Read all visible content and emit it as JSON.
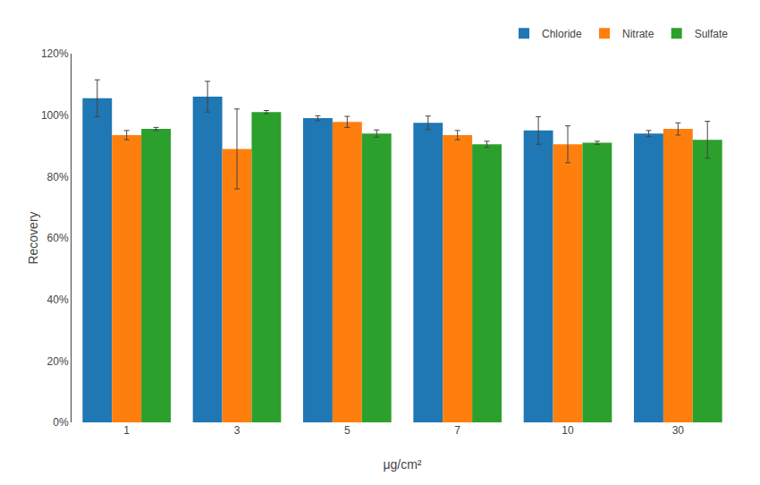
{
  "chart_data": {
    "type": "bar",
    "xlabel": "μg/cm²",
    "ylabel": "Recovery",
    "categories": [
      "1",
      "3",
      "5",
      "7",
      "10",
      "30"
    ],
    "series": [
      {
        "name": "Chloride",
        "values": [
          1.055,
          1.06,
          0.99,
          0.975,
          0.95,
          0.94
        ],
        "errors": [
          0.06,
          0.05,
          0.008,
          0.022,
          0.045,
          0.01
        ]
      },
      {
        "name": "Nitrate",
        "values": [
          0.935,
          0.89,
          0.978,
          0.935,
          0.905,
          0.955
        ],
        "errors": [
          0.015,
          0.13,
          0.018,
          0.015,
          0.06,
          0.02
        ]
      },
      {
        "name": "Sulfate",
        "values": [
          0.955,
          1.01,
          0.94,
          0.905,
          0.91,
          0.92
        ],
        "errors": [
          0.005,
          0.005,
          0.012,
          0.01,
          0.005,
          0.06
        ]
      }
    ],
    "ylim": [
      0,
      1.2
    ],
    "yticks": [
      {
        "value": 0,
        "label": "0%"
      },
      {
        "value": 0.2,
        "label": "20%"
      },
      {
        "value": 0.4,
        "label": "40%"
      },
      {
        "value": 0.6,
        "label": "60%"
      },
      {
        "value": 0.8,
        "label": "80%"
      },
      {
        "value": 1.0,
        "label": "100%"
      },
      {
        "value": 1.2,
        "label": "120%"
      }
    ],
    "grid": false,
    "legend": "upper right"
  }
}
